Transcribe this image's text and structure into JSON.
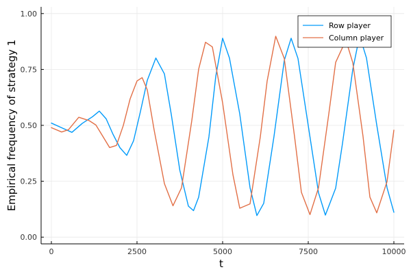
{
  "chart_data": {
    "type": "line",
    "xlabel": "t",
    "ylabel": "Empirical frequency of strategy 1",
    "xlim": [
      -300,
      10300
    ],
    "ylim": [
      -0.03,
      1.03
    ],
    "xticks": [
      0,
      2500,
      5000,
      7500,
      10000
    ],
    "xtick_labels": [
      "0",
      "2500",
      "5000",
      "7500",
      "10000"
    ],
    "yticks": [
      0.0,
      0.25,
      0.5,
      0.75,
      1.0
    ],
    "ytick_labels": [
      "0.00",
      "0.25",
      "0.50",
      "0.75",
      "1.00"
    ],
    "grid": true,
    "legend_position": "top-right",
    "series": [
      {
        "name": "Row player",
        "color": "#009AFA",
        "x": [
          0,
          300,
          600,
          900,
          1200,
          1400,
          1600,
          1800,
          2000,
          2200,
          2400,
          2600,
          2800,
          3050,
          3300,
          3500,
          3750,
          4000,
          4150,
          4300,
          4600,
          4800,
          5000,
          5200,
          5500,
          5800,
          6000,
          6200,
          6500,
          6800,
          7000,
          7200,
          7500,
          7800,
          8000,
          8300,
          8500,
          8800,
          9000,
          9200,
          9500,
          9800,
          10000
        ],
        "y": [
          0.51,
          0.49,
          0.47,
          0.51,
          0.54,
          0.565,
          0.53,
          0.46,
          0.4,
          0.365,
          0.43,
          0.56,
          0.7,
          0.8,
          0.73,
          0.55,
          0.3,
          0.14,
          0.12,
          0.18,
          0.45,
          0.72,
          0.89,
          0.8,
          0.55,
          0.22,
          0.095,
          0.15,
          0.45,
          0.79,
          0.89,
          0.8,
          0.5,
          0.2,
          0.1,
          0.22,
          0.42,
          0.75,
          0.9,
          0.8,
          0.5,
          0.22,
          0.11
        ]
      },
      {
        "name": "Column player",
        "color": "#E26F46",
        "x": [
          0,
          300,
          500,
          800,
          1100,
          1300,
          1500,
          1700,
          1900,
          2100,
          2300,
          2500,
          2650,
          2800,
          3000,
          3300,
          3550,
          3800,
          4100,
          4300,
          4500,
          4700,
          5000,
          5300,
          5500,
          5800,
          6100,
          6300,
          6550,
          6800,
          7100,
          7300,
          7550,
          7800,
          8100,
          8300,
          8600,
          8800,
          9100,
          9300,
          9500,
          9800,
          10000
        ],
        "y": [
          0.49,
          0.47,
          0.48,
          0.535,
          0.52,
          0.5,
          0.45,
          0.4,
          0.41,
          0.5,
          0.62,
          0.7,
          0.715,
          0.66,
          0.48,
          0.24,
          0.14,
          0.22,
          0.52,
          0.75,
          0.87,
          0.85,
          0.6,
          0.28,
          0.13,
          0.15,
          0.45,
          0.7,
          0.9,
          0.8,
          0.45,
          0.2,
          0.1,
          0.22,
          0.55,
          0.78,
          0.88,
          0.78,
          0.45,
          0.18,
          0.11,
          0.25,
          0.48
        ]
      }
    ]
  }
}
